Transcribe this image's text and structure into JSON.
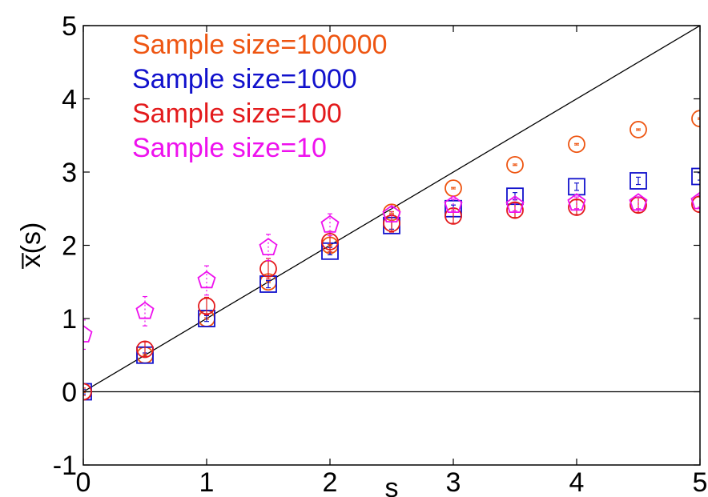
{
  "chart_data": {
    "type": "scatter",
    "xlabel": "s",
    "ylabel": "x̅(s)",
    "xlim": [
      0,
      5
    ],
    "ylim": [
      -1,
      5
    ],
    "xticks": [
      "0",
      "1",
      "2",
      "3",
      "4",
      "5"
    ],
    "yticks": [
      "-1",
      "0",
      "1",
      "2",
      "3",
      "4",
      "5"
    ],
    "grid": false,
    "legend_position": "top-left",
    "reference_lines": [
      {
        "kind": "identity",
        "color": "#000000"
      },
      {
        "kind": "horizontal",
        "y": 0,
        "color": "#000000"
      }
    ],
    "series": [
      {
        "name": "Sample size=100000",
        "color": "#ee5511",
        "marker": "circle",
        "x": [
          0,
          0.5,
          1,
          1.5,
          2,
          2.5,
          3,
          3.5,
          4,
          4.5,
          5
        ],
        "y": [
          0.0,
          0.5,
          1.0,
          1.5,
          2.0,
          2.45,
          2.78,
          3.1,
          3.38,
          3.58,
          3.73
        ],
        "err": [
          0.01,
          0.01,
          0.01,
          0.01,
          0.01,
          0.01,
          0.01,
          0.01,
          0.01,
          0.01,
          0.01
        ]
      },
      {
        "name": "Sample size=1000",
        "color": "#1111cc",
        "marker": "square",
        "x": [
          0,
          0.5,
          1,
          1.5,
          2,
          2.5,
          3,
          3.5,
          4,
          4.5,
          5
        ],
        "y": [
          0.0,
          0.5,
          1.0,
          1.47,
          1.92,
          2.27,
          2.5,
          2.67,
          2.8,
          2.88,
          2.94
        ],
        "err": [
          0.03,
          0.03,
          0.04,
          0.05,
          0.05,
          0.05,
          0.05,
          0.05,
          0.05,
          0.05,
          0.05
        ]
      },
      {
        "name": "Sample size=100",
        "color": "#e31a1c",
        "marker": "circle",
        "x": [
          0,
          0.5,
          1,
          1.5,
          2,
          2.5,
          3,
          3.5,
          4,
          4.5,
          5
        ],
        "y": [
          0.0,
          0.58,
          1.17,
          1.68,
          2.05,
          2.3,
          2.4,
          2.48,
          2.52,
          2.55,
          2.56
        ],
        "err": [
          0.05,
          0.1,
          0.12,
          0.14,
          0.14,
          0.12,
          0.1,
          0.1,
          0.1,
          0.1,
          0.1
        ]
      },
      {
        "name": "Sample size=10",
        "color": "#ee11ee",
        "marker": "pentagon",
        "x": [
          0,
          0.5,
          1,
          1.5,
          2,
          2.5,
          3,
          3.5,
          4,
          4.5,
          5
        ],
        "y": [
          0.78,
          1.1,
          1.52,
          1.97,
          2.28,
          2.42,
          2.55,
          2.55,
          2.58,
          2.58,
          2.6
        ],
        "err": [
          0.2,
          0.2,
          0.2,
          0.18,
          0.15,
          0.1,
          0.08,
          0.08,
          0.08,
          0.08,
          0.08
        ]
      }
    ]
  }
}
